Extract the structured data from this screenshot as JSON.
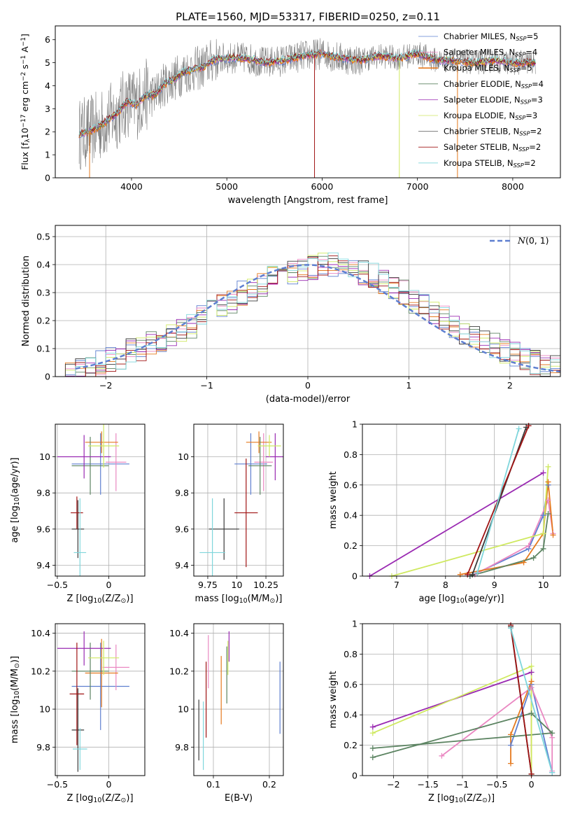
{
  "figure": {
    "title": "PLATE=1560, MJD=53317, FIBERID=0250, z=0.11"
  },
  "chart_data": [
    {
      "id": "spectrum",
      "type": "line",
      "xlabel": "wavelength [Angstrom, rest frame]",
      "ylabel": "Flux [f$_\\lambda$10$^{-17}$ erg cm$^{-2}$ s$^{-1}$ A$^{-1}$]",
      "ylabel_parts": [
        "Flux [f",
        "λ",
        "10",
        "−17",
        " erg cm",
        "−2",
        " s",
        "−1",
        " A",
        "−1",
        "]"
      ],
      "xlim": [
        3200,
        8500
      ],
      "ylim": [
        0,
        6.6
      ],
      "xticks": [
        4000,
        5000,
        6000,
        7000,
        8000
      ],
      "yticks": [
        0,
        1,
        2,
        3,
        4,
        5,
        6
      ],
      "grid": false,
      "legend_position": "top-right",
      "data_x": [
        3450,
        3550,
        3650,
        3750,
        3850,
        3950,
        4050,
        4150,
        4250,
        4350,
        4450,
        4550,
        4650,
        4750,
        4850,
        5000,
        5200,
        5400,
        5600,
        5800,
        6000,
        6200,
        6400,
        6600,
        6800,
        7000,
        7200,
        7400,
        7600,
        7800,
        8000,
        8200
      ],
      "data_y": [
        1.9,
        2.0,
        2.2,
        2.5,
        2.8,
        3.3,
        3.2,
        3.6,
        3.6,
        4.1,
        4.3,
        4.6,
        4.7,
        4.8,
        5.1,
        5.2,
        5.2,
        5.0,
        5.1,
        5.3,
        5.4,
        5.2,
        5.1,
        5.3,
        5.2,
        5.4,
        5.1,
        5.1,
        5.0,
        5.1,
        5.0,
        5.0
      ],
      "series": [
        {
          "name": "Chabrier MILES, N",
          "sub": "SSP",
          "suffix": "=5",
          "color": "#5e7fd0",
          "width": 0.8
        },
        {
          "name": "Salpeter MILES, N",
          "sub": "SSP",
          "suffix": "=4",
          "color": "#ea88c2",
          "width": 0.8
        },
        {
          "name": "Kroupa MILES, N",
          "sub": "SSP",
          "suffix": "=5",
          "color": "#e57a1f",
          "width": 1.6
        },
        {
          "name": "Chabrier ELODIE, N",
          "sub": "SSP",
          "suffix": "=4",
          "color": "#5c8462",
          "width": 0.8
        },
        {
          "name": "Salpeter ELODIE, N",
          "sub": "SSP",
          "suffix": "=3",
          "color": "#9a2ab2",
          "width": 0.8
        },
        {
          "name": "Kroupa ELODIE, N",
          "sub": "SSP",
          "suffix": "=3",
          "color": "#cfe960",
          "width": 0.8
        },
        {
          "name": "Chabrier STELIB, N",
          "sub": "SSP",
          "suffix": "=2",
          "color": "#3b3b3b",
          "width": 0.6
        },
        {
          "name": "Salpeter STELIB, N",
          "sub": "SSP",
          "suffix": "=2",
          "color": "#a01414",
          "width": 0.8
        },
        {
          "name": "Kroupa STELIB, N",
          "sub": "SSP",
          "suffix": "=2",
          "color": "#7fd6dc",
          "width": 0.8
        }
      ]
    },
    {
      "id": "residuals",
      "type": "histogram",
      "xlabel": "(data-model)/error",
      "ylabel": "Normed distribution",
      "xlim": [
        -2.5,
        2.5
      ],
      "ylim": [
        0,
        0.54
      ],
      "xticks": [
        -2,
        -1,
        0,
        1,
        2
      ],
      "yticks": [
        0.0,
        0.1,
        0.2,
        0.3,
        0.4,
        0.5
      ],
      "grid": true,
      "legend_position": "top-right",
      "normal_label": "N(0,1)",
      "normal_color": "#5e7fd0",
      "bin_width": 0.1,
      "bin_start": -2.5,
      "densities": [
        0.02,
        0.02,
        0.03,
        0.03,
        0.05,
        0.06,
        0.07,
        0.09,
        0.1,
        0.12,
        0.13,
        0.15,
        0.16,
        0.18,
        0.21,
        0.23,
        0.25,
        0.27,
        0.3,
        0.31,
        0.33,
        0.35,
        0.36,
        0.37,
        0.38,
        0.39,
        0.4,
        0.4,
        0.39,
        0.38,
        0.37,
        0.36,
        0.34,
        0.32,
        0.3,
        0.27,
        0.25,
        0.23,
        0.21,
        0.18,
        0.16,
        0.14,
        0.13,
        0.11,
        0.09,
        0.08,
        0.06,
        0.05,
        0.04,
        0.03
      ]
    },
    {
      "id": "age-vs-Z",
      "type": "errorbar",
      "xlabel": "Z [log$_{10}$(Z/Z$_\\odot$)]",
      "ylabel": "age  [log$_{10}$(age/yr)]",
      "xlim": [
        -0.52,
        0.35
      ],
      "ylim": [
        9.34,
        10.18
      ],
      "xticks": [
        -0.5,
        0.0
      ],
      "yticks": [
        9.4,
        9.6,
        9.8,
        10.0
      ],
      "grid": true,
      "points": [
        {
          "x": -0.08,
          "y": 9.96,
          "xerr": 0.28,
          "yerr": 0.17,
          "color": "#5e7fd0"
        },
        {
          "x": 0.07,
          "y": 9.97,
          "xerr": 0.1,
          "yerr": 0.16,
          "color": "#ea88c2"
        },
        {
          "x": -0.07,
          "y": 10.08,
          "xerr": 0.16,
          "yerr": 0.06,
          "color": "#e57a1f"
        },
        {
          "x": -0.18,
          "y": 9.95,
          "xerr": 0.18,
          "yerr": 0.16,
          "color": "#5c8462"
        },
        {
          "x": -0.24,
          "y": 10.0,
          "xerr": 0.26,
          "yerr": 0.12,
          "color": "#9a2ab2"
        },
        {
          "x": -0.05,
          "y": 10.06,
          "xerr": 0.15,
          "yerr": 0.12,
          "color": "#cfe960"
        },
        {
          "x": -0.3,
          "y": 9.6,
          "xerr": 0.06,
          "yerr": 0.16,
          "color": "#3b3b3b"
        },
        {
          "x": -0.31,
          "y": 9.69,
          "xerr": 0.06,
          "yerr": 0.09,
          "color": "#a01414"
        },
        {
          "x": -0.28,
          "y": 9.47,
          "xerr": 0.06,
          "yerr": 0.3,
          "color": "#7fd6dc"
        }
      ]
    },
    {
      "id": "age-vs-mass",
      "type": "errorbar",
      "xlabel": "mass [log$_{10}$(M/M$_\\odot$)]",
      "ylabel": "",
      "xlim": [
        9.63,
        10.4
      ],
      "ylim": [
        9.34,
        10.18
      ],
      "xticks": [
        9.75,
        10.0,
        10.25
      ],
      "yticks": [
        9.4,
        9.6,
        9.8,
        10.0
      ],
      "grid": true,
      "points": [
        {
          "x": 10.12,
          "y": 9.96,
          "xerr": 0.14,
          "yerr": 0.17,
          "color": "#5e7fd0"
        },
        {
          "x": 10.23,
          "y": 9.97,
          "xerr": 0.08,
          "yerr": 0.16,
          "color": "#ea88c2"
        },
        {
          "x": 10.19,
          "y": 10.08,
          "xerr": 0.11,
          "yerr": 0.06,
          "color": "#e57a1f"
        },
        {
          "x": 10.2,
          "y": 9.95,
          "xerr": 0.1,
          "yerr": 0.16,
          "color": "#5c8462"
        },
        {
          "x": 10.33,
          "y": 10.0,
          "xerr": 0.08,
          "yerr": 0.13,
          "color": "#9a2ab2"
        },
        {
          "x": 10.28,
          "y": 10.06,
          "xerr": 0.1,
          "yerr": 0.06,
          "color": "#cfe960"
        },
        {
          "x": 9.89,
          "y": 9.6,
          "xerr": 0.13,
          "yerr": 0.17,
          "color": "#3b3b3b"
        },
        {
          "x": 10.08,
          "y": 9.69,
          "xerr": 0.1,
          "yerr": 0.3,
          "color": "#a01414"
        },
        {
          "x": 9.79,
          "y": 9.47,
          "xerr": 0.11,
          "yerr": 0.3,
          "color": "#7fd6dc"
        }
      ]
    },
    {
      "id": "weight-vs-age",
      "type": "line",
      "xlabel": "age  [log$_{10}$(age/yr)]",
      "ylabel": "mass weight",
      "xlim": [
        6.3,
        10.35
      ],
      "ylim": [
        0,
        1.0
      ],
      "xticks": [
        7,
        8,
        9,
        10
      ],
      "yticks": [
        0.0,
        0.2,
        0.4,
        0.6,
        0.8,
        1.0
      ],
      "grid": true,
      "series": [
        {
          "color": "#5e7fd0",
          "x": [
            8.5,
            9.7,
            10.0,
            10.1
          ],
          "y": [
            0.0,
            0.18,
            0.4,
            0.6
          ]
        },
        {
          "color": "#ea88c2",
          "x": [
            8.6,
            9.7,
            10.1,
            10.2
          ],
          "y": [
            0.01,
            0.2,
            0.5,
            0.28
          ]
        },
        {
          "color": "#e57a1f",
          "x": [
            8.3,
            9.6,
            10.0,
            10.1,
            10.2
          ],
          "y": [
            0.01,
            0.09,
            0.28,
            0.62,
            0.27
          ]
        },
        {
          "color": "#5c8462",
          "x": [
            8.5,
            9.8,
            10.0,
            10.1
          ],
          "y": [
            0.0,
            0.12,
            0.18,
            0.41
          ]
        },
        {
          "color": "#9a2ab2",
          "x": [
            6.45,
            10.0
          ],
          "y": [
            0.0,
            0.68
          ]
        },
        {
          "color": "#cfe960",
          "x": [
            6.9,
            10.0,
            10.1
          ],
          "y": [
            0.0,
            0.28,
            0.72
          ]
        },
        {
          "color": "#3b3b3b",
          "x": [
            8.55,
            9.65
          ],
          "y": [
            0.01,
            0.98
          ]
        },
        {
          "color": "#a01414",
          "x": [
            8.45,
            9.7
          ],
          "y": [
            0.01,
            0.99
          ]
        },
        {
          "color": "#7fd6dc",
          "x": [
            8.65,
            9.5
          ],
          "y": [
            0.02,
            0.97
          ]
        }
      ]
    },
    {
      "id": "mass-vs-Z",
      "type": "errorbar",
      "xlabel": "Z [log$_{10}$(Z/Z$_\\odot$)]",
      "ylabel": "mass [log$_{10}$(M/M$_\\odot$)]",
      "xlim": [
        -0.52,
        0.35
      ],
      "ylim": [
        9.65,
        10.45
      ],
      "xticks": [
        -0.5,
        0.0
      ],
      "yticks": [
        9.8,
        10.0,
        10.2,
        10.4
      ],
      "grid": true,
      "points": [
        {
          "x": -0.08,
          "y": 10.12,
          "xerr": 0.28,
          "yerr": 0.23,
          "color": "#5e7fd0"
        },
        {
          "x": 0.07,
          "y": 10.22,
          "xerr": 0.13,
          "yerr": 0.12,
          "color": "#ea88c2"
        },
        {
          "x": -0.07,
          "y": 10.19,
          "xerr": 0.16,
          "yerr": 0.18,
          "color": "#e57a1f"
        },
        {
          "x": -0.18,
          "y": 10.2,
          "xerr": 0.18,
          "yerr": 0.15,
          "color": "#5c8462"
        },
        {
          "x": -0.24,
          "y": 10.32,
          "xerr": 0.26,
          "yerr": 0.09,
          "color": "#9a2ab2"
        },
        {
          "x": -0.05,
          "y": 10.27,
          "xerr": 0.15,
          "yerr": 0.09,
          "color": "#cfe960"
        },
        {
          "x": -0.3,
          "y": 9.89,
          "xerr": 0.06,
          "yerr": 0.22,
          "color": "#3b3b3b"
        },
        {
          "x": -0.31,
          "y": 10.08,
          "xerr": 0.07,
          "yerr": 0.27,
          "color": "#a01414"
        },
        {
          "x": -0.28,
          "y": 9.79,
          "xerr": 0.07,
          "yerr": 0.11,
          "color": "#7fd6dc"
        }
      ]
    },
    {
      "id": "mass-vs-ebv",
      "type": "errorbar",
      "xlabel": "E(B-V)",
      "ylabel": "",
      "xlim": [
        0.065,
        0.225
      ],
      "ylim": [
        9.65,
        10.45
      ],
      "xticks": [
        0.1,
        0.2
      ],
      "yticks": [
        9.8,
        10.0,
        10.2,
        10.4
      ],
      "grid": true,
      "points": [
        {
          "x": 0.219,
          "y": 10.06,
          "xerr": 0,
          "yerr": 0.19,
          "color": "#5e7fd0"
        },
        {
          "x": 0.091,
          "y": 10.25,
          "xerr": 0,
          "yerr": 0.14,
          "color": "#ea88c2"
        },
        {
          "x": 0.114,
          "y": 10.1,
          "xerr": 0,
          "yerr": 0.18,
          "color": "#e57a1f"
        },
        {
          "x": 0.124,
          "y": 10.18,
          "xerr": 0,
          "yerr": 0.15,
          "color": "#5c8462"
        },
        {
          "x": 0.128,
          "y": 10.33,
          "xerr": 0,
          "yerr": 0.08,
          "color": "#9a2ab2"
        },
        {
          "x": 0.126,
          "y": 10.27,
          "xerr": 0,
          "yerr": 0.09,
          "color": "#cfe960"
        },
        {
          "x": 0.074,
          "y": 9.89,
          "xerr": 0,
          "yerr": 0.16,
          "color": "#3b3b3b"
        },
        {
          "x": 0.087,
          "y": 10.05,
          "xerr": 0,
          "yerr": 0.2,
          "color": "#a01414"
        },
        {
          "x": 0.082,
          "y": 9.86,
          "xerr": 0,
          "yerr": 0.18,
          "color": "#7fd6dc"
        }
      ]
    },
    {
      "id": "weight-vs-Z",
      "type": "line",
      "xlabel": "Z [log$_{10}$(Z/Z$_\\odot$)]",
      "ylabel": "mass weight",
      "xlim": [
        -2.45,
        0.42
      ],
      "ylim": [
        0,
        1.0
      ],
      "xticks": [
        -2.0,
        -1.5,
        -1.0,
        -0.5,
        0.0
      ],
      "yticks": [
        0.0,
        0.2,
        0.4,
        0.6,
        0.8,
        1.0
      ],
      "grid": true,
      "series": [
        {
          "color": "#5e7fd0",
          "x": [
            -0.3,
            0.0,
            0.3
          ],
          "y": [
            0.2,
            0.6,
            0.02
          ]
        },
        {
          "color": "#ea88c2",
          "x": [
            -1.3,
            0.0,
            0.3,
            0.3
          ],
          "y": [
            0.13,
            0.58,
            0.25,
            0.03
          ]
        },
        {
          "color": "#e57a1f",
          "x": [
            -0.3,
            -0.3,
            0.0,
            0.0
          ],
          "y": [
            0.08,
            0.27,
            0.62,
            0.01
          ]
        },
        {
          "color": "#5c8462",
          "x": [
            -2.3,
            0.0,
            0.3,
            -2.3
          ],
          "y": [
            0.12,
            0.41,
            0.28,
            0.18
          ]
        },
        {
          "color": "#9a2ab2",
          "x": [
            -2.3,
            0.0
          ],
          "y": [
            0.32,
            0.68
          ]
        },
        {
          "color": "#cfe960",
          "x": [
            -2.3,
            0.0,
            0.0
          ],
          "y": [
            0.28,
            0.72,
            0.01
          ]
        },
        {
          "color": "#3b3b3b",
          "x": [
            -0.3,
            0.0
          ],
          "y": [
            0.98,
            0.01
          ]
        },
        {
          "color": "#a01414",
          "x": [
            -0.3,
            0.0
          ],
          "y": [
            0.99,
            0.01
          ]
        },
        {
          "color": "#7fd6dc",
          "x": [
            -0.3,
            0.3
          ],
          "y": [
            0.97,
            0.02
          ]
        }
      ]
    }
  ]
}
